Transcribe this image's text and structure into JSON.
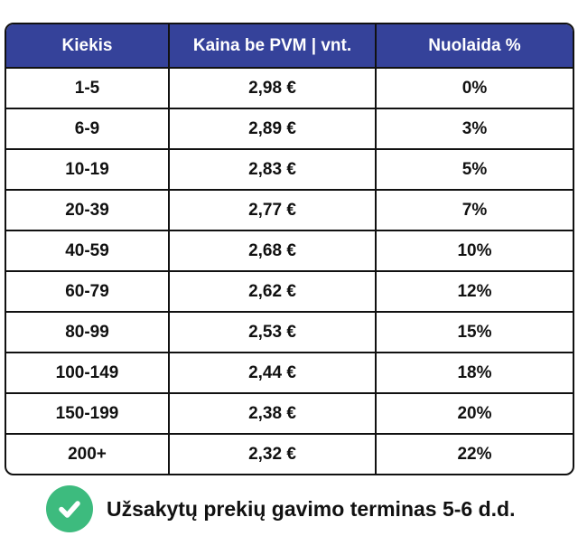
{
  "table": {
    "headers": [
      "Kiekis",
      "Kaina be PVM | vnt.",
      "Nuolaida %"
    ],
    "rows": [
      [
        "1-5",
        "2,98 €",
        "0%"
      ],
      [
        "6-9",
        "2,89 €",
        "3%"
      ],
      [
        "10-19",
        "2,83 €",
        "5%"
      ],
      [
        "20-39",
        "2,77 €",
        "7%"
      ],
      [
        "40-59",
        "2,68 €",
        "10%"
      ],
      [
        "60-79",
        "2,62 €",
        "12%"
      ],
      [
        "80-99",
        "2,53 €",
        "15%"
      ],
      [
        "100-149",
        "2,44 €",
        "18%"
      ],
      [
        "150-199",
        "2,38 €",
        "20%"
      ],
      [
        "200+",
        "2,32 €",
        "22%"
      ]
    ]
  },
  "note": {
    "icon": "check-circle-icon",
    "text": "Užsakytų prekių gavimo terminas 5-6 d.d.",
    "icon_color": "#3dbb7e"
  },
  "colors": {
    "header_bg": "#35429a"
  }
}
